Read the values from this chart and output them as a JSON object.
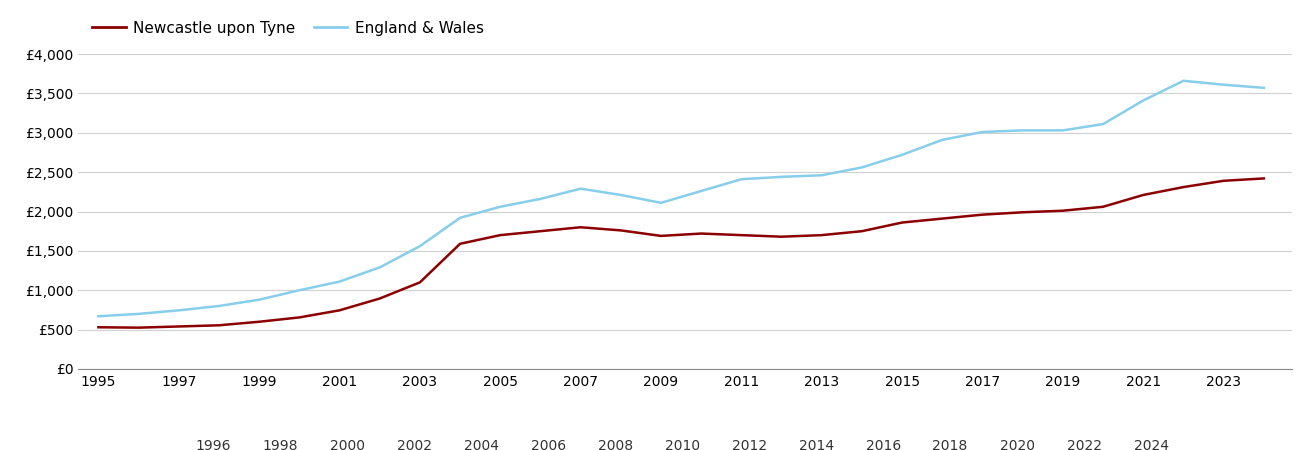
{
  "years": [
    1995,
    1996,
    1997,
    1998,
    1999,
    2000,
    2001,
    2002,
    2003,
    2004,
    2005,
    2006,
    2007,
    2008,
    2009,
    2010,
    2011,
    2012,
    2013,
    2014,
    2015,
    2016,
    2017,
    2018,
    2019,
    2020,
    2021,
    2022,
    2023,
    2024
  ],
  "newcastle": [
    530,
    525,
    540,
    555,
    600,
    655,
    745,
    895,
    1100,
    1590,
    1700,
    1750,
    1800,
    1760,
    1690,
    1720,
    1700,
    1680,
    1700,
    1750,
    1860,
    1910,
    1960,
    1990,
    2010,
    2060,
    2210,
    2310,
    2390,
    2420
  ],
  "england_wales": [
    670,
    700,
    745,
    800,
    880,
    1000,
    1110,
    1290,
    1560,
    1920,
    2060,
    2160,
    2290,
    2210,
    2110,
    2260,
    2410,
    2440,
    2460,
    2560,
    2720,
    2910,
    3010,
    3030,
    3030,
    3110,
    3410,
    3660,
    3610,
    3570
  ],
  "newcastle_color": "#8B0000",
  "england_wales_color": "#87CEEB",
  "background_color": "#ffffff",
  "grid_color": "#d0d0d0",
  "ylim": [
    0,
    4000
  ],
  "yticks": [
    0,
    500,
    1000,
    1500,
    2000,
    2500,
    3000,
    3500,
    4000
  ],
  "ytick_labels": [
    "£0",
    "£500",
    "£1,000",
    "£1,500",
    "£2,000",
    "£2,500",
    "£3,000",
    "£3,500",
    "£4,000"
  ],
  "legend_newcastle": "Newcastle upon Tyne",
  "legend_england": "England & Wales",
  "line_width": 1.8,
  "tick_fontsize": 10,
  "legend_fontsize": 11
}
